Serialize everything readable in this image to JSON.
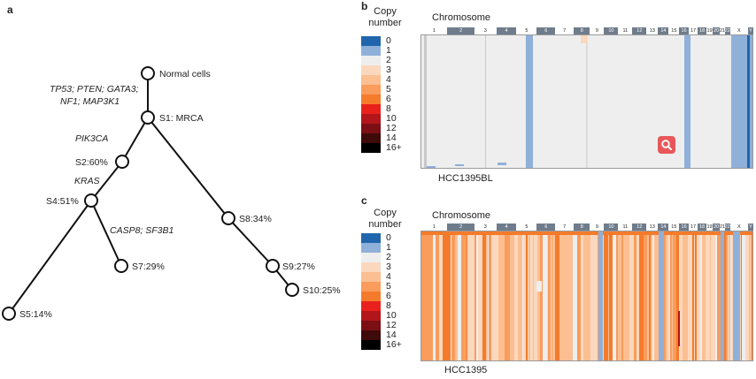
{
  "panels": {
    "a": "a",
    "b": "b",
    "c": "c"
  },
  "tree": {
    "nodes": [
      {
        "id": "normal",
        "label": "Normal cells"
      },
      {
        "id": "s1",
        "label": "S1: MRCA"
      },
      {
        "id": "s2",
        "label": "S2:60%"
      },
      {
        "id": "s4",
        "label": "S4:51%"
      },
      {
        "id": "s5",
        "label": "S5:14%"
      },
      {
        "id": "s7",
        "label": "S7:29%"
      },
      {
        "id": "s8",
        "label": "S8:34%"
      },
      {
        "id": "s9",
        "label": "S9:27%"
      },
      {
        "id": "s10",
        "label": "S10:25%"
      }
    ],
    "mutations": [
      {
        "id": "m1a",
        "label": "TP53; PTEN; GATA3;"
      },
      {
        "id": "m1b",
        "label": "NF1; MAP3K1"
      },
      {
        "id": "m2",
        "label": "PIK3CA"
      },
      {
        "id": "m3",
        "label": "KRAS"
      },
      {
        "id": "m4",
        "label": "CASP8; SF3B1"
      }
    ]
  },
  "legend": {
    "title_line1": "Copy",
    "title_line2": "number",
    "entries": [
      {
        "label": "0",
        "color": "#2166ac"
      },
      {
        "label": "1",
        "color": "#8fb0d9"
      },
      {
        "label": "2",
        "color": "#eeeeee"
      },
      {
        "label": "3",
        "color": "#fbd8bd"
      },
      {
        "label": "4",
        "color": "#fbbf92"
      },
      {
        "label": "5",
        "color": "#f99c5c"
      },
      {
        "label": "6",
        "color": "#f47b2b"
      },
      {
        "label": "8",
        "color": "#e8211c"
      },
      {
        "label": "10",
        "color": "#b2161a"
      },
      {
        "label": "12",
        "color": "#7c0f14"
      },
      {
        "label": "14",
        "color": "#3e0a0a"
      },
      {
        "label": "16+",
        "color": "#000000"
      }
    ]
  },
  "chromosomes": [
    "1",
    "2",
    "3",
    "4",
    "5",
    "6",
    "7",
    "8",
    "9",
    "10",
    "11",
    "12",
    "13",
    "14",
    "15",
    "16",
    "17",
    "18",
    "19",
    "20",
    "21",
    "22",
    "X",
    "Y"
  ],
  "chromosome_title": "Chromosome",
  "heatmaps": {
    "b": {
      "sample": "HCC1395BL"
    },
    "c": {
      "sample": "HCC1395"
    }
  },
  "zoom": {
    "icon": "zoom-icon"
  }
}
